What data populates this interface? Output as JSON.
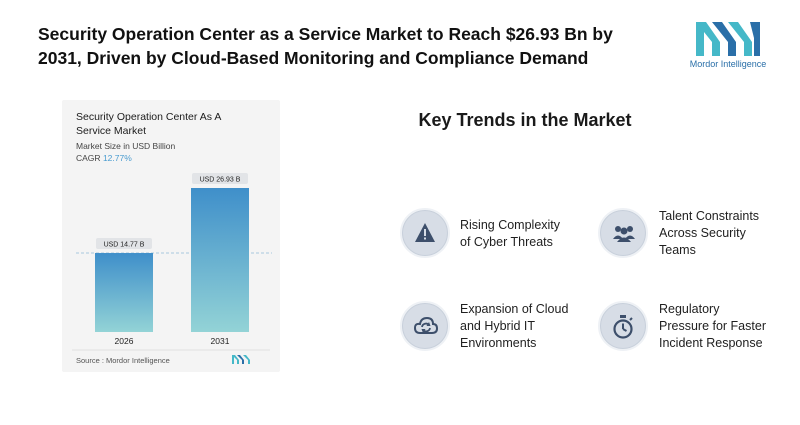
{
  "headline": {
    "line1": "Security Operation Center as a Service Market to Reach $26.93 Bn by",
    "line2": "2031, Driven by Cloud-Based Monitoring and Compliance Demand"
  },
  "brand": {
    "name": "Mordor Intelligence",
    "color": "#2a6fa8",
    "accent": "#45b8c8"
  },
  "chart_card": {
    "title_line1": "Security Operation Center As A",
    "title_line2": "Service Market",
    "subtitle": "Market Size in USD Billion",
    "cagr_label": "CAGR",
    "cagr_value": "12.77%",
    "source": "Source :  Mordor Intelligence"
  },
  "chart_data": {
    "type": "bar",
    "title": "Security Operation Center As A Service Market",
    "ylabel": "Market Size in USD Billion",
    "categories": [
      "2026",
      "2031"
    ],
    "values": [
      14.77,
      26.93
    ],
    "data_labels": [
      "USD 14.77 B",
      "USD 26.93 B"
    ],
    "ylim": [
      0,
      26.93
    ],
    "grid": false,
    "reference_line": 14.77,
    "bar_colors": {
      "top": "#3f8fca",
      "bottom": "#93d3d6"
    }
  },
  "trends": {
    "title": "Key Trends in the Market",
    "items": [
      {
        "icon": "warning-icon",
        "line1": "Rising Complexity",
        "line2": "of Cyber Threats",
        "line3": ""
      },
      {
        "icon": "team-icon",
        "line1": "Talent Constraints",
        "line2": "Across Security",
        "line3": "Teams"
      },
      {
        "icon": "cloud-sync-icon",
        "line1": "Expansion of Cloud",
        "line2": "and Hybrid IT",
        "line3": "Environments"
      },
      {
        "icon": "stopwatch-icon",
        "line1": "Regulatory",
        "line2": "Pressure for Faster",
        "line3": "Incident Response"
      }
    ]
  }
}
